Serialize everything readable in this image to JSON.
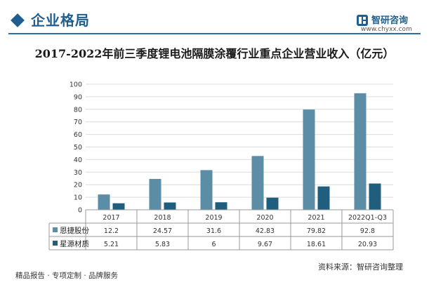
{
  "header": {
    "section_title": "企业格局",
    "brand_name": "智研咨询",
    "brand_url": "www.chyxx.com"
  },
  "chart_data": {
    "type": "bar",
    "title": "2017-2022年前三季度锂电池隔膜涂覆行业重点企业营业收入（亿元）",
    "categories": [
      "2017",
      "2018",
      "2019",
      "2020",
      "2021",
      "2022Q1-Q3"
    ],
    "series": [
      {
        "name": "恩捷股份",
        "values": [
          12.2,
          24.57,
          31.6,
          42.83,
          79.82,
          92.8
        ],
        "display": [
          "12.2",
          "24.57",
          "31.6",
          "42.83",
          "79.82",
          "92.8"
        ],
        "color": "#5b8ea6"
      },
      {
        "name": "星源材质",
        "values": [
          5.21,
          5.83,
          6,
          9.67,
          18.61,
          20.93
        ],
        "display": [
          "5.21",
          "5.83",
          "6",
          "9.67",
          "18.61",
          "20.93"
        ],
        "color": "#1f5f7d"
      }
    ],
    "yticks": [
      "0",
      "10",
      "20",
      "30",
      "40",
      "50",
      "60",
      "70",
      "80",
      "90",
      "100"
    ],
    "ylim": [
      0,
      100
    ],
    "grid": true,
    "legend": "data-table"
  },
  "footer": {
    "left": "精品报告 · 专项定制 · 品牌服务",
    "right": "资料来源：智研咨询整理"
  }
}
